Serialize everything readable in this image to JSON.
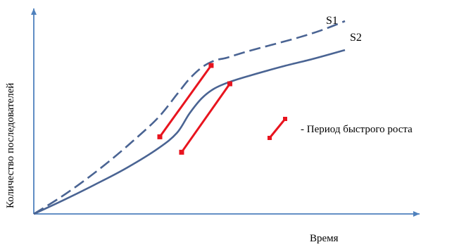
{
  "chart_data": {
    "type": "line",
    "xlabel": "Время",
    "ylabel": "Количество последователей",
    "grid": false,
    "legend_text": "- Период быстрого роста",
    "legend_placement": "right",
    "series": [
      {
        "name": "S1",
        "style": "dashed",
        "color": "#4A6493",
        "x": [
          0,
          8,
          16,
          24,
          32,
          40,
          46,
          50,
          54,
          58,
          62,
          68,
          76,
          84,
          92,
          100
        ],
        "y": [
          0,
          8,
          17,
          27,
          38,
          50,
          62,
          70,
          76,
          79.5,
          81,
          84,
          87.5,
          91,
          95,
          100
        ],
        "rapid_growth": {
          "x": [
            40.5,
            57
          ],
          "y": [
            40,
            77
          ]
        }
      },
      {
        "name": "S2",
        "style": "solid",
        "color": "#4A6493",
        "x": [
          0,
          10,
          20,
          30,
          40,
          46,
          50,
          54,
          58,
          63,
          70,
          80,
          90,
          100
        ],
        "y": [
          0,
          7.5,
          15.5,
          24,
          34,
          42,
          52,
          60,
          65,
          68.5,
          72,
          76.5,
          80.5,
          85
        ],
        "rapid_growth": {
          "x": [
            47.5,
            63
          ],
          "y": [
            32,
            67.5
          ]
        }
      }
    ],
    "colors": {
      "axis": "#4F81BD",
      "rapid_growth": "#E8141E"
    }
  }
}
